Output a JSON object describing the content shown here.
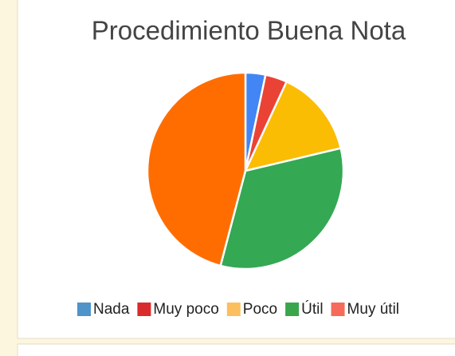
{
  "chart_data": {
    "type": "pie",
    "title": "Procedimiento Buena Nota",
    "categories": [
      "Nada",
      "Muy poco",
      "Poco",
      "Útil",
      "Muy útil"
    ],
    "values": [
      3.3,
      3.6,
      14.4,
      32.8,
      45.9
    ],
    "colors": [
      "#4285f4",
      "#ea4335",
      "#fbbc04",
      "#34a853",
      "#ff6d01"
    ],
    "legend_colors": [
      "#4e93c9",
      "#d92b2b",
      "#fcbf5f",
      "#3aa64c",
      "#f66a5a"
    ],
    "legend": "bottom"
  }
}
